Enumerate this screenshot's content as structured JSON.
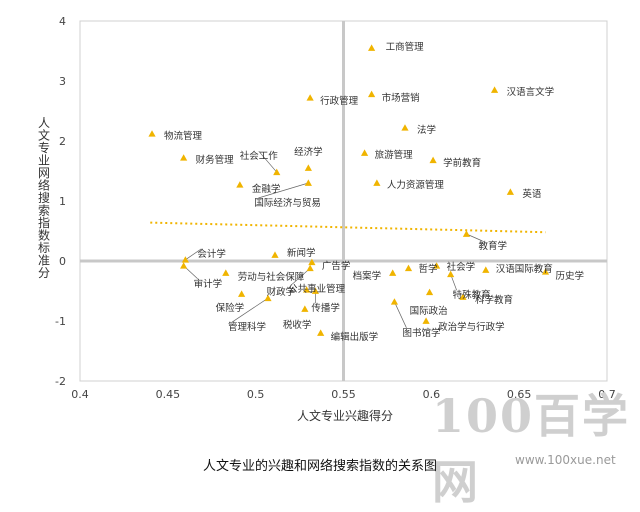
{
  "caption": "人文专业的兴趣和网络搜索指数的关系图",
  "watermark": {
    "brand": "100百学网",
    "url": "www.100xue.net"
  },
  "chart_data": {
    "type": "scatter",
    "xlabel": "人文专业兴趣得分",
    "ylabel": "人文专业网络搜索指数标准分",
    "xlim": [
      0.4,
      0.7
    ],
    "ylim": [
      -2,
      4
    ],
    "xticks": [
      "0.4",
      "0.45",
      "0.5",
      "0.55",
      "0.6",
      "0.65",
      "0.7"
    ],
    "yticks": [
      "-2",
      "-1",
      "0",
      "1",
      "2",
      "3",
      "4"
    ],
    "quadrant_lines": {
      "x": 0.55,
      "y": 0
    },
    "grid": false,
    "marker_color": "#f0b400",
    "trendline": {
      "color": "#f0b400",
      "style": "dotted",
      "x": [
        0.44,
        0.665
      ],
      "y": [
        0.64,
        0.48
      ]
    },
    "points": [
      {
        "label": "工商管理",
        "x": 0.566,
        "y": 3.55
      },
      {
        "label": "汉语言文学",
        "x": 0.636,
        "y": 2.85
      },
      {
        "label": "市场营销",
        "x": 0.566,
        "y": 2.78
      },
      {
        "label": "行政管理",
        "x": 0.531,
        "y": 2.72
      },
      {
        "label": "法学",
        "x": 0.585,
        "y": 2.22
      },
      {
        "label": "物流管理",
        "x": 0.441,
        "y": 2.12
      },
      {
        "label": "旅游管理",
        "x": 0.562,
        "y": 1.8
      },
      {
        "label": "学前教育",
        "x": 0.601,
        "y": 1.68
      },
      {
        "label": "财务管理",
        "x": 0.459,
        "y": 1.72
      },
      {
        "label": "经济学",
        "x": 0.53,
        "y": 1.55
      },
      {
        "label": "社会工作",
        "x": 0.512,
        "y": 1.48
      },
      {
        "label": "人力资源管理",
        "x": 0.569,
        "y": 1.3
      },
      {
        "label": "金融学",
        "x": 0.491,
        "y": 1.27
      },
      {
        "label": "国际经济与贸易",
        "x": 0.53,
        "y": 1.3
      },
      {
        "label": "英语",
        "x": 0.645,
        "y": 1.15
      },
      {
        "label": "教育学",
        "x": 0.62,
        "y": 0.45
      },
      {
        "label": "新闻学",
        "x": 0.511,
        "y": 0.1
      },
      {
        "label": "会计学",
        "x": 0.46,
        "y": 0.02
      },
      {
        "label": "审计学",
        "x": 0.459,
        "y": -0.08
      },
      {
        "label": "广告学",
        "x": 0.532,
        "y": -0.02
      },
      {
        "label": "哲学",
        "x": 0.587,
        "y": -0.12
      },
      {
        "label": "社会学",
        "x": 0.603,
        "y": -0.08
      },
      {
        "label": "汉语国际教育",
        "x": 0.631,
        "y": -0.15
      },
      {
        "label": "历史学",
        "x": 0.665,
        "y": -0.18
      },
      {
        "label": "劳动与社会保障",
        "x": 0.483,
        "y": -0.2
      },
      {
        "label": "档案学",
        "x": 0.578,
        "y": -0.2
      },
      {
        "label": "特殊教育",
        "x": 0.611,
        "y": -0.22
      },
      {
        "label": "公共事业管理",
        "x": 0.531,
        "y": -0.12
      },
      {
        "label": "财政学",
        "x": 0.529,
        "y": -0.48
      },
      {
        "label": "科学教育",
        "x": 0.618,
        "y": -0.6
      },
      {
        "label": "保险学",
        "x": 0.492,
        "y": -0.55
      },
      {
        "label": "国际政治",
        "x": 0.599,
        "y": -0.52
      },
      {
        "label": "传播学",
        "x": 0.534,
        "y": -0.5
      },
      {
        "label": "图书馆学",
        "x": 0.579,
        "y": -0.68
      },
      {
        "label": "管理科学",
        "x": 0.507,
        "y": -0.62
      },
      {
        "label": "税收学",
        "x": 0.528,
        "y": -0.8
      },
      {
        "label": "政治学与行政学",
        "x": 0.597,
        "y": -1.0
      },
      {
        "label": "编辑出版学",
        "x": 0.537,
        "y": -1.2
      }
    ]
  }
}
